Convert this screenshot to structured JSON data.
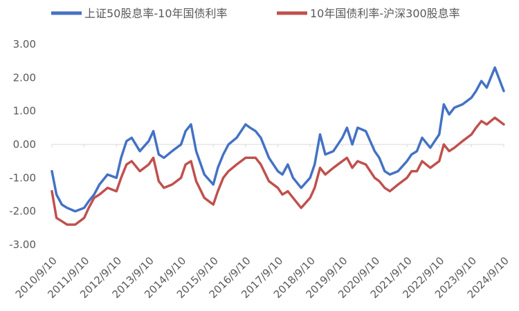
{
  "chart_data": {
    "type": "line",
    "title": "",
    "xlabel": "",
    "ylabel": "",
    "ylim": [
      -3,
      3
    ],
    "y_ticks": [
      "3.00",
      "2.00",
      "1.00",
      "0.00",
      "-1.00",
      "-2.00",
      "-3.00"
    ],
    "x_ticks": [
      "2010/9/10",
      "2011/9/10",
      "2012/9/10",
      "2013/9/10",
      "2014/9/10",
      "2015/9/10",
      "2016/9/10",
      "2017/9/10",
      "2018/9/10",
      "2019/9/10",
      "2020/9/10",
      "2021/9/10",
      "2022/9/10",
      "2023/9/10",
      "2024/9/10"
    ],
    "grid": false,
    "legend_position": "top",
    "series": [
      {
        "name": "上证50股息率-10年国债利率",
        "color": "#4472C4",
        "points": [
          [
            "2010/9/10",
            -0.8
          ],
          [
            "2010/11/1",
            -1.5
          ],
          [
            "2011/1/1",
            -1.8
          ],
          [
            "2011/3/1",
            -1.9
          ],
          [
            "2011/6/1",
            -2.0
          ],
          [
            "2011/9/10",
            -1.9
          ],
          [
            "2011/11/1",
            -1.7
          ],
          [
            "2012/1/1",
            -1.5
          ],
          [
            "2012/3/1",
            -1.2
          ],
          [
            "2012/6/1",
            -0.9
          ],
          [
            "2012/9/10",
            -1.0
          ],
          [
            "2012/11/1",
            -0.4
          ],
          [
            "2013/1/1",
            0.1
          ],
          [
            "2013/3/1",
            0.2
          ],
          [
            "2013/6/1",
            -0.2
          ],
          [
            "2013/9/10",
            0.1
          ],
          [
            "2013/11/1",
            0.4
          ],
          [
            "2014/1/1",
            -0.3
          ],
          [
            "2014/3/1",
            -0.4
          ],
          [
            "2014/6/1",
            -0.2
          ],
          [
            "2014/9/10",
            0.0
          ],
          [
            "2014/11/1",
            0.4
          ],
          [
            "2015/1/1",
            0.6
          ],
          [
            "2015/3/1",
            -0.2
          ],
          [
            "2015/6/1",
            -0.9
          ],
          [
            "2015/9/10",
            -1.2
          ],
          [
            "2015/11/1",
            -0.7
          ],
          [
            "2016/1/1",
            -0.3
          ],
          [
            "2016/3/1",
            0.0
          ],
          [
            "2016/6/1",
            0.2
          ],
          [
            "2016/9/10",
            0.6
          ],
          [
            "2016/11/1",
            0.5
          ],
          [
            "2017/1/1",
            0.4
          ],
          [
            "2017/3/1",
            0.2
          ],
          [
            "2017/6/1",
            -0.4
          ],
          [
            "2017/9/10",
            -0.8
          ],
          [
            "2017/11/1",
            -0.9
          ],
          [
            "2018/1/1",
            -0.6
          ],
          [
            "2018/3/1",
            -1.0
          ],
          [
            "2018/6/1",
            -1.3
          ],
          [
            "2018/9/10",
            -1.0
          ],
          [
            "2018/11/1",
            -0.6
          ],
          [
            "2019/1/1",
            0.3
          ],
          [
            "2019/3/1",
            -0.3
          ],
          [
            "2019/6/1",
            -0.2
          ],
          [
            "2019/9/10",
            0.2
          ],
          [
            "2019/11/1",
            0.5
          ],
          [
            "2020/1/1",
            0.0
          ],
          [
            "2020/3/1",
            0.5
          ],
          [
            "2020/6/1",
            0.4
          ],
          [
            "2020/9/10",
            -0.2
          ],
          [
            "2020/11/1",
            -0.4
          ],
          [
            "2021/1/1",
            -0.8
          ],
          [
            "2021/3/1",
            -0.9
          ],
          [
            "2021/6/1",
            -0.8
          ],
          [
            "2021/9/10",
            -0.5
          ],
          [
            "2021/11/1",
            -0.3
          ],
          [
            "2022/1/1",
            -0.2
          ],
          [
            "2022/3/1",
            0.2
          ],
          [
            "2022/6/1",
            -0.1
          ],
          [
            "2022/9/10",
            0.3
          ],
          [
            "2022/11/1",
            1.2
          ],
          [
            "2023/1/1",
            0.9
          ],
          [
            "2023/3/1",
            1.1
          ],
          [
            "2023/6/1",
            1.2
          ],
          [
            "2023/9/10",
            1.4
          ],
          [
            "2023/11/1",
            1.6
          ],
          [
            "2024/1/1",
            1.9
          ],
          [
            "2024/3/1",
            1.7
          ],
          [
            "2024/6/1",
            2.3
          ],
          [
            "2024/9/10",
            1.6
          ]
        ]
      },
      {
        "name": "10年国债利率-沪深300股息率",
        "color": "#C0504D",
        "points": [
          [
            "2010/9/10",
            -1.4
          ],
          [
            "2010/11/1",
            -2.2
          ],
          [
            "2011/1/1",
            -2.3
          ],
          [
            "2011/3/1",
            -2.4
          ],
          [
            "2011/6/1",
            -2.4
          ],
          [
            "2011/9/10",
            -2.2
          ],
          [
            "2011/11/1",
            -1.9
          ],
          [
            "2012/1/1",
            -1.6
          ],
          [
            "2012/3/1",
            -1.5
          ],
          [
            "2012/6/1",
            -1.3
          ],
          [
            "2012/9/10",
            -1.4
          ],
          [
            "2012/11/1",
            -1.0
          ],
          [
            "2013/1/1",
            -0.6
          ],
          [
            "2013/3/1",
            -0.5
          ],
          [
            "2013/6/1",
            -0.8
          ],
          [
            "2013/9/10",
            -0.6
          ],
          [
            "2013/11/1",
            -0.4
          ],
          [
            "2014/1/1",
            -1.1
          ],
          [
            "2014/3/1",
            -1.3
          ],
          [
            "2014/6/1",
            -1.2
          ],
          [
            "2014/9/10",
            -1.0
          ],
          [
            "2014/11/1",
            -0.6
          ],
          [
            "2015/1/1",
            -0.5
          ],
          [
            "2015/3/1",
            -1.1
          ],
          [
            "2015/6/1",
            -1.6
          ],
          [
            "2015/9/10",
            -1.8
          ],
          [
            "2015/11/1",
            -1.4
          ],
          [
            "2016/1/1",
            -1.0
          ],
          [
            "2016/3/1",
            -0.8
          ],
          [
            "2016/6/1",
            -0.6
          ],
          [
            "2016/9/10",
            -0.4
          ],
          [
            "2016/11/1",
            -0.4
          ],
          [
            "2017/1/1",
            -0.4
          ],
          [
            "2017/3/1",
            -0.6
          ],
          [
            "2017/6/1",
            -1.1
          ],
          [
            "2017/9/10",
            -1.3
          ],
          [
            "2017/11/1",
            -1.5
          ],
          [
            "2018/1/1",
            -1.4
          ],
          [
            "2018/3/1",
            -1.6
          ],
          [
            "2018/6/1",
            -1.9
          ],
          [
            "2018/9/10",
            -1.6
          ],
          [
            "2018/11/1",
            -1.3
          ],
          [
            "2019/1/1",
            -0.7
          ],
          [
            "2019/3/1",
            -0.9
          ],
          [
            "2019/6/1",
            -0.7
          ],
          [
            "2019/9/10",
            -0.5
          ],
          [
            "2019/11/1",
            -0.4
          ],
          [
            "2020/1/1",
            -0.7
          ],
          [
            "2020/3/1",
            -0.5
          ],
          [
            "2020/6/1",
            -0.6
          ],
          [
            "2020/9/10",
            -1.0
          ],
          [
            "2020/11/1",
            -1.1
          ],
          [
            "2021/1/1",
            -1.3
          ],
          [
            "2021/3/1",
            -1.4
          ],
          [
            "2021/6/1",
            -1.2
          ],
          [
            "2021/9/10",
            -1.0
          ],
          [
            "2021/11/1",
            -0.8
          ],
          [
            "2022/1/1",
            -0.8
          ],
          [
            "2022/3/1",
            -0.5
          ],
          [
            "2022/6/1",
            -0.7
          ],
          [
            "2022/9/10",
            -0.5
          ],
          [
            "2022/11/1",
            0.0
          ],
          [
            "2023/1/1",
            -0.2
          ],
          [
            "2023/3/1",
            -0.1
          ],
          [
            "2023/6/1",
            0.1
          ],
          [
            "2023/9/10",
            0.3
          ],
          [
            "2023/11/1",
            0.5
          ],
          [
            "2024/1/1",
            0.7
          ],
          [
            "2024/3/1",
            0.6
          ],
          [
            "2024/6/1",
            0.8
          ],
          [
            "2024/9/10",
            0.6
          ]
        ]
      }
    ]
  }
}
